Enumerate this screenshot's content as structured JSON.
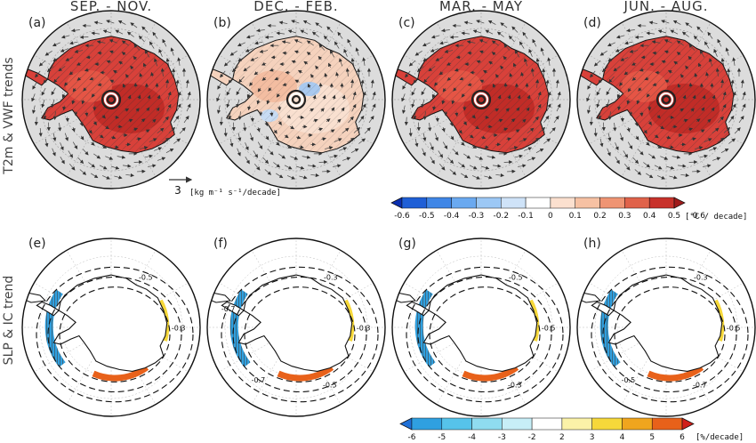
{
  "seasons": [
    "SEP. - NOV.",
    "DEC. - FEB.",
    "MAR. - MAY",
    "JUN. - AUG."
  ],
  "row_labels": {
    "top": "T2m & VWF trends",
    "bottom": "SLP & IC trend"
  },
  "panel_labels": [
    "(a)",
    "(b)",
    "(c)",
    "(d)",
    "(e)",
    "(f)",
    "(g)",
    "(h)"
  ],
  "vector_reference": {
    "value": "3",
    "units": "[kg m⁻¹ s⁻¹/decade]"
  },
  "temperature_colorbar": {
    "ticks": [
      "-0.6",
      "-0.5",
      "-0.4",
      "-0.3",
      "-0.2",
      "-0.1",
      "0",
      "0.1",
      "0.2",
      "0.3",
      "0.4",
      "0.5",
      "0.6"
    ],
    "units": "[°C / decade]",
    "colors": [
      "#0a2fb0",
      "#1f5fd6",
      "#3f86e6",
      "#6aa9f0",
      "#9cc8f5",
      "#cfe3f8",
      "#ffffff",
      "#fbe0cf",
      "#f6c1a3",
      "#ef9473",
      "#e0624a",
      "#c8322b",
      "#a01b1b"
    ]
  },
  "ice_colorbar": {
    "ticks": [
      "-6",
      "-5",
      "-4",
      "-3",
      "-2",
      "2",
      "3",
      "4",
      "5",
      "6"
    ],
    "units": "[%/decade]",
    "colors": [
      "#1e6fd6",
      "#2fa0e0",
      "#56c3ea",
      "#8fdcf0",
      "#c7eef7",
      "#ffffff",
      "#fbf2a8",
      "#f6d83a",
      "#f0a51e",
      "#e8611a",
      "#d0201a"
    ]
  },
  "top_panels": [
    {
      "id": "a",
      "warmth": 0.85,
      "cold_patch": false
    },
    {
      "id": "b",
      "warmth": 0.25,
      "cold_patch": true
    },
    {
      "id": "c",
      "warmth": 0.6,
      "cold_patch": false
    },
    {
      "id": "d",
      "warmth": 0.8,
      "cold_patch": false
    }
  ],
  "bottom_panels": [
    {
      "id": "e",
      "contour_labels": [
        "-0.5",
        "-0.3"
      ]
    },
    {
      "id": "f",
      "contour_labels": [
        "-0.3",
        "-0.3",
        "-0.5",
        "-0.7",
        "-0.7"
      ]
    },
    {
      "id": "g",
      "contour_labels": [
        "-0.5",
        "-0.5",
        "-0.3"
      ]
    },
    {
      "id": "h",
      "contour_labels": [
        "-0.3",
        "-0.5",
        "-0.7",
        "-0.5"
      ]
    }
  ]
}
